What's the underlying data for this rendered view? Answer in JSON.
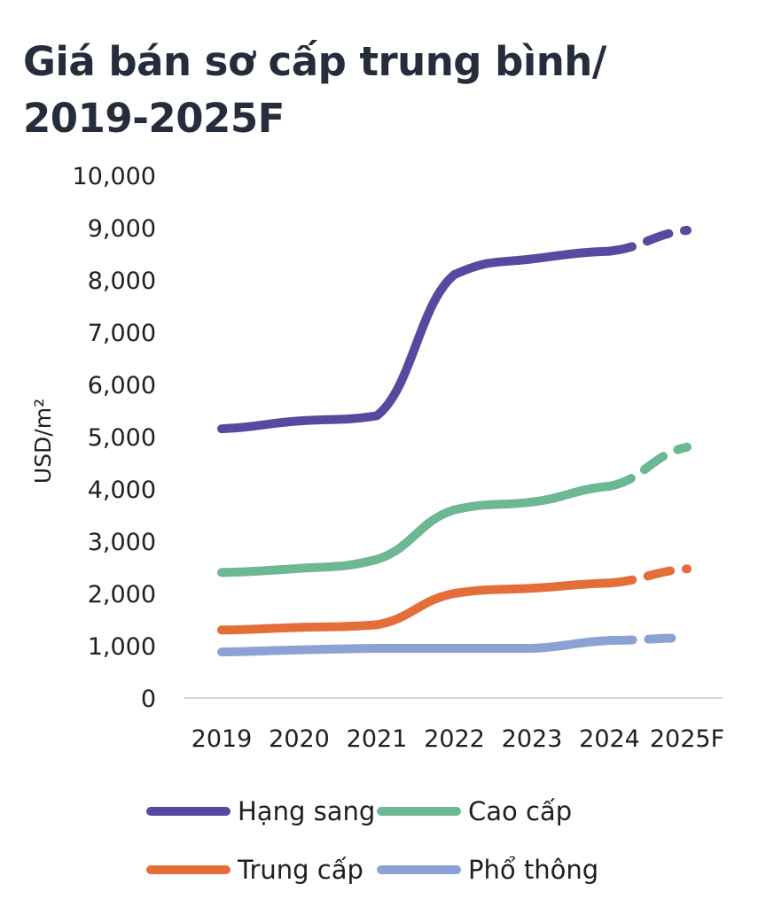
{
  "header": {
    "title_line1": "Giá bán sơ cấp trung bình/",
    "title_line2": "2019-2025F"
  },
  "chart_data": {
    "type": "line",
    "title": "Giá bán sơ cấp trung bình/ 2019-2025F",
    "xlabel": "",
    "ylabel": "USD/m²",
    "categories": [
      "2019",
      "2020",
      "2021",
      "2022",
      "2023",
      "2024",
      "2025F"
    ],
    "ylim": [
      0,
      10000
    ],
    "yticks": [
      0,
      1000,
      2000,
      3000,
      4000,
      5000,
      6000,
      7000,
      8000,
      9000,
      10000
    ],
    "ytick_labels": [
      "0",
      "1,000",
      "2,000",
      "3,000",
      "4,000",
      "5,000",
      "6,000",
      "7,000",
      "8,000",
      "9,000",
      "10,000"
    ],
    "grid": false,
    "forecast_from_index": 5,
    "legend_position": "bottom",
    "series": [
      {
        "name": "Hạng sang",
        "color": "#5a47a0",
        "values": [
          5150,
          5300,
          5400,
          8100,
          8400,
          8550,
          8950
        ]
      },
      {
        "name": "Cao cấp",
        "color": "#6bb893",
        "values": [
          2400,
          2480,
          2650,
          3600,
          3750,
          4050,
          4800
        ]
      },
      {
        "name": "Trung cấp",
        "color": "#e46e3a",
        "values": [
          1300,
          1350,
          1400,
          2000,
          2100,
          2200,
          2470
        ]
      },
      {
        "name": "Phổ thông",
        "color": "#8aa2d4",
        "values": [
          880,
          920,
          950,
          950,
          950,
          1100,
          1150
        ]
      }
    ]
  }
}
